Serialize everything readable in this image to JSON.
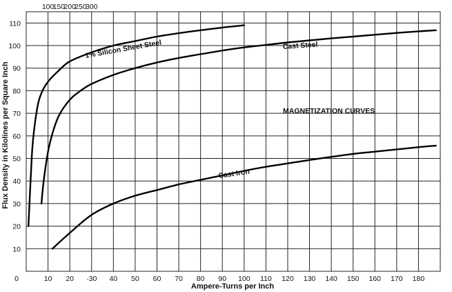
{
  "chart_data": {
    "type": "line",
    "title": "",
    "xlabel": "Ampere-Turns per Inch",
    "ylabel": "Flux Density in Kilolines per Square Inch",
    "xlim": [
      0,
      190
    ],
    "ylim": [
      0,
      115
    ],
    "x_ticks": [
      10,
      20,
      30,
      40,
      50,
      60,
      70,
      80,
      90,
      100,
      110,
      120,
      130,
      140,
      150,
      160,
      170,
      180
    ],
    "x_tick_labels": [
      "10",
      "20",
      "·30",
      "40",
      "50",
      "60",
      "70",
      "80",
      "90",
      "100",
      "110",
      "120",
      "130",
      "140",
      "150",
      "160",
      "170",
      "180"
    ],
    "y_ticks": [
      10,
      20,
      30,
      40,
      50,
      60,
      70,
      80,
      90,
      100,
      110
    ],
    "y_tick_labels": [
      "10",
      "20",
      "30",
      "40",
      "50",
      "60",
      "70",
      "80",
      "90",
      "100",
      "110"
    ],
    "origin_label": "0",
    "top_axis": {
      "scale_note": "secondary scale for Cast Iron",
      "ticks": [
        100,
        150,
        200,
        250,
        300
      ],
      "labels": [
        "100",
        "150",
        "200",
        "250",
        "300"
      ]
    },
    "grid": true,
    "annotations": [
      "MAGNETIZATION CURVES"
    ],
    "series": [
      {
        "name": "1% Silicon Sheet Steel",
        "x": [
          1,
          2,
          3,
          5,
          7,
          10,
          15,
          20,
          30,
          40,
          50,
          60,
          70,
          80,
          90,
          100
        ],
        "y": [
          20,
          40,
          57,
          72,
          79,
          84,
          89,
          93,
          97,
          100,
          102,
          104,
          105.5,
          106.8,
          108,
          109
        ]
      },
      {
        "name": "Cast Steel",
        "x": [
          7,
          8,
          10,
          12,
          15,
          20,
          25,
          30,
          40,
          50,
          60,
          70,
          80,
          90,
          100,
          110,
          120,
          130,
          140,
          150,
          160,
          170,
          180,
          188
        ],
        "y": [
          30,
          40,
          53,
          61,
          69,
          76,
          80,
          83,
          87,
          90,
          92.5,
          94.5,
          96.2,
          97.8,
          99.2,
          100.3,
          101.4,
          102.3,
          103.2,
          104,
          104.8,
          105.6,
          106.3,
          106.8
        ]
      },
      {
        "name": "Cast Iron",
        "x": [
          12,
          20,
          30,
          40,
          50,
          60,
          70,
          80,
          90,
          100,
          110,
          120,
          130,
          140,
          150,
          160,
          170,
          180,
          188
        ],
        "y": [
          10,
          17,
          25,
          30,
          33.5,
          36,
          38.5,
          40.5,
          42.5,
          44.5,
          46.3,
          47.8,
          49.3,
          50.7,
          52,
          53,
          54,
          55,
          55.7
        ]
      }
    ]
  }
}
